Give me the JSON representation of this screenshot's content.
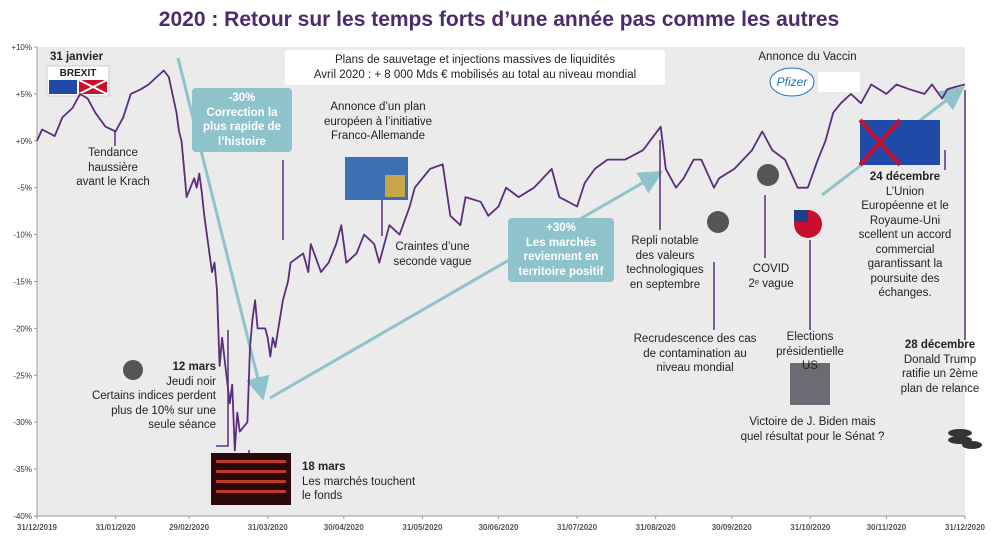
{
  "chart_data": {
    "type": "line",
    "title": "2020 : Retour sur les temps forts d’une année pas comme les autres",
    "color": "#5b2d7a",
    "grid": false,
    "x": [
      "2019-12-31",
      "2020-01-02",
      "2020-01-07",
      "2020-01-10",
      "2020-01-14",
      "2020-01-17",
      "2020-01-20",
      "2020-01-23",
      "2020-01-27",
      "2020-01-31",
      "2020-02-03",
      "2020-02-06",
      "2020-02-10",
      "2020-02-13",
      "2020-02-17",
      "2020-02-19",
      "2020-02-21",
      "2020-02-24",
      "2020-02-25",
      "2020-02-26",
      "2020-02-27",
      "2020-02-28",
      "2020-03-02",
      "2020-03-03",
      "2020-03-04",
      "2020-03-05",
      "2020-03-06",
      "2020-03-09",
      "2020-03-10",
      "2020-03-11",
      "2020-03-12",
      "2020-03-13",
      "2020-03-16",
      "2020-03-17",
      "2020-03-18",
      "2020-03-19",
      "2020-03-20",
      "2020-03-23",
      "2020-03-24",
      "2020-03-25",
      "2020-03-26",
      "2020-03-27",
      "2020-03-30",
      "2020-03-31",
      "2020-04-01",
      "2020-04-02",
      "2020-04-03",
      "2020-04-06",
      "2020-04-08",
      "2020-04-09",
      "2020-04-14",
      "2020-04-16",
      "2020-04-17",
      "2020-04-21",
      "2020-04-24",
      "2020-04-27",
      "2020-04-29",
      "2020-05-01",
      "2020-05-05",
      "2020-05-08",
      "2020-05-12",
      "2020-05-14",
      "2020-05-18",
      "2020-05-22",
      "2020-05-26",
      "2020-05-28",
      "2020-06-03",
      "2020-06-08",
      "2020-06-11",
      "2020-06-15",
      "2020-06-17",
      "2020-06-23",
      "2020-06-26",
      "2020-06-30",
      "2020-07-03",
      "2020-07-08",
      "2020-07-14",
      "2020-07-21",
      "2020-07-24",
      "2020-07-31",
      "2020-08-03",
      "2020-08-07",
      "2020-08-12",
      "2020-08-19",
      "2020-08-26",
      "2020-09-02",
      "2020-09-04",
      "2020-09-08",
      "2020-09-11",
      "2020-09-15",
      "2020-09-18",
      "2020-09-23",
      "2020-09-25",
      "2020-10-01",
      "2020-10-08",
      "2020-10-12",
      "2020-10-16",
      "2020-10-21",
      "2020-10-26",
      "2020-10-30",
      "2020-11-03",
      "2020-11-06",
      "2020-11-09",
      "2020-11-12",
      "2020-11-16",
      "2020-11-20",
      "2020-11-24",
      "2020-11-30",
      "2020-12-04",
      "2020-12-09",
      "2020-12-15",
      "2020-12-18",
      "2020-12-22",
      "2020-12-24",
      "2020-12-28",
      "2020-12-31"
    ],
    "values": [
      0,
      1.2,
      0.5,
      2.5,
      3.5,
      5,
      4.5,
      3,
      1.5,
      1,
      2.5,
      5,
      5.5,
      6,
      7,
      7.5,
      6.8,
      3,
      1,
      0,
      -3,
      -6,
      -4,
      -5,
      -3.5,
      -5.5,
      -8,
      -14,
      -13,
      -16,
      -24,
      -21,
      -28,
      -26,
      -33,
      -29,
      -31,
      -30,
      -22,
      -19,
      -17,
      -20,
      -20,
      -21,
      -23,
      -21,
      -22,
      -17,
      -15,
      -13,
      -12,
      -14,
      -11,
      -14,
      -13,
      -11,
      -9,
      -13,
      -12,
      -10,
      -11,
      -13,
      -9,
      -10,
      -7,
      -5,
      -3,
      -2.5,
      -8,
      -9,
      -6,
      -6.5,
      -8,
      -7,
      -5,
      -6,
      -5,
      -3,
      -6,
      -7,
      -4.5,
      -3,
      -2,
      -2,
      -1,
      1.5,
      -3,
      -5,
      -4,
      -2,
      -2,
      -5,
      -4,
      -3,
      -1,
      1,
      -1,
      -2,
      -5,
      -5,
      -2,
      0,
      3,
      4,
      5,
      4,
      6,
      5,
      6,
      5.5,
      5,
      6,
      4.5,
      5.5,
      5.8,
      6
    ],
    "xlim": [
      "2019-12-31",
      "2020-12-31"
    ],
    "xticks": [
      {
        "value": "2019-12-31",
        "label": "31/12/2019"
      },
      {
        "value": "2020-01-31",
        "label": "31/01/2020"
      },
      {
        "value": "2020-02-29",
        "label": "29/02/2020"
      },
      {
        "value": "2020-03-31",
        "label": "31/03/2020"
      },
      {
        "value": "2020-04-30",
        "label": "30/04/2020"
      },
      {
        "value": "2020-05-31",
        "label": "31/05/2020"
      },
      {
        "value": "2020-06-30",
        "label": "30/06/2020"
      },
      {
        "value": "2020-07-31",
        "label": "31/07/2020"
      },
      {
        "value": "2020-08-31",
        "label": "31/08/2020"
      },
      {
        "value": "2020-09-30",
        "label": "30/09/2020"
      },
      {
        "value": "2020-10-31",
        "label": "31/10/2020"
      },
      {
        "value": "2020-11-30",
        "label": "30/11/2020"
      },
      {
        "value": "2020-12-31",
        "label": "31/12/2020"
      }
    ],
    "ylim": [
      -40,
      10
    ],
    "yticks": [
      {
        "value": 10,
        "label": "+10%"
      },
      {
        "value": 5,
        "label": "+5%"
      },
      {
        "value": 0,
        "label": "+0%"
      },
      {
        "value": -5,
        "label": "-5%"
      },
      {
        "value": -10,
        "label": "-10%"
      },
      {
        "value": -15,
        "label": "-15%"
      },
      {
        "value": -20,
        "label": "-20%"
      },
      {
        "value": -25,
        "label": "-25%"
      },
      {
        "value": -30,
        "label": "-30%"
      },
      {
        "value": -35,
        "label": "-35%"
      },
      {
        "value": -40,
        "label": "-40%"
      }
    ],
    "logos": {
      "brexit": "BREXIT",
      "pfizer": "Pfizer"
    },
    "annotations": [
      {
        "heading": "31 janvier",
        "lines": []
      },
      {
        "lines": [
          "Tendance",
          "haussière",
          "avant le Krach"
        ]
      },
      {
        "lines": [
          "-30%",
          "Correction la",
          "plus rapide de",
          "l’histoire"
        ]
      },
      {
        "lines": [
          "Plans de sauvetage et injections massives de liquidités",
          "Avril 2020 : + 8 000 Mds € mobilisés au total au niveau mondial"
        ]
      },
      {
        "lines": [
          "Annonce d’un plan",
          "européen à l’initiative",
          "Franco-Allemande"
        ]
      },
      {
        "lines": [
          "Craintes d’une",
          "seconde vague"
        ]
      },
      {
        "lines": [
          "+30%",
          "Les marchés",
          "reviennent en",
          "territoire positif"
        ]
      },
      {
        "lines": [
          "Annonce du Vaccin"
        ]
      },
      {
        "lines": [
          "Repli notable",
          "des valeurs",
          "technologiques",
          "en septembre"
        ]
      },
      {
        "lines": [
          "COVID",
          "2ᵉ vague"
        ]
      },
      {
        "heading": "24 décembre",
        "lines": [
          "L’Union",
          "Européenne et le",
          "Royaume-Uni",
          "scellent un accord",
          "commercial",
          "garantissant la",
          "poursuite des",
          "échanges."
        ]
      },
      {
        "lines": [
          "Recrudescence des cas",
          "de contamination au",
          "niveau mondial"
        ]
      },
      {
        "lines": [
          "Elections",
          "présidentielle",
          "US"
        ]
      },
      {
        "lines": [
          "Victoire de J. Biden mais",
          "quel résultat pour le Sénat ?"
        ]
      },
      {
        "heading": "12 mars",
        "lines": [
          "Jeudi noir",
          "Certains indices perdent",
          "plus de 10% sur une",
          "seule séance"
        ]
      },
      {
        "heading": "18 mars",
        "lines": [
          "Les marchés touchent",
          "le fonds"
        ]
      },
      {
        "heading": "28 décembre",
        "lines": [
          "Donald Trump",
          "ratifie un 2ème",
          "plan de relance"
        ]
      }
    ]
  }
}
